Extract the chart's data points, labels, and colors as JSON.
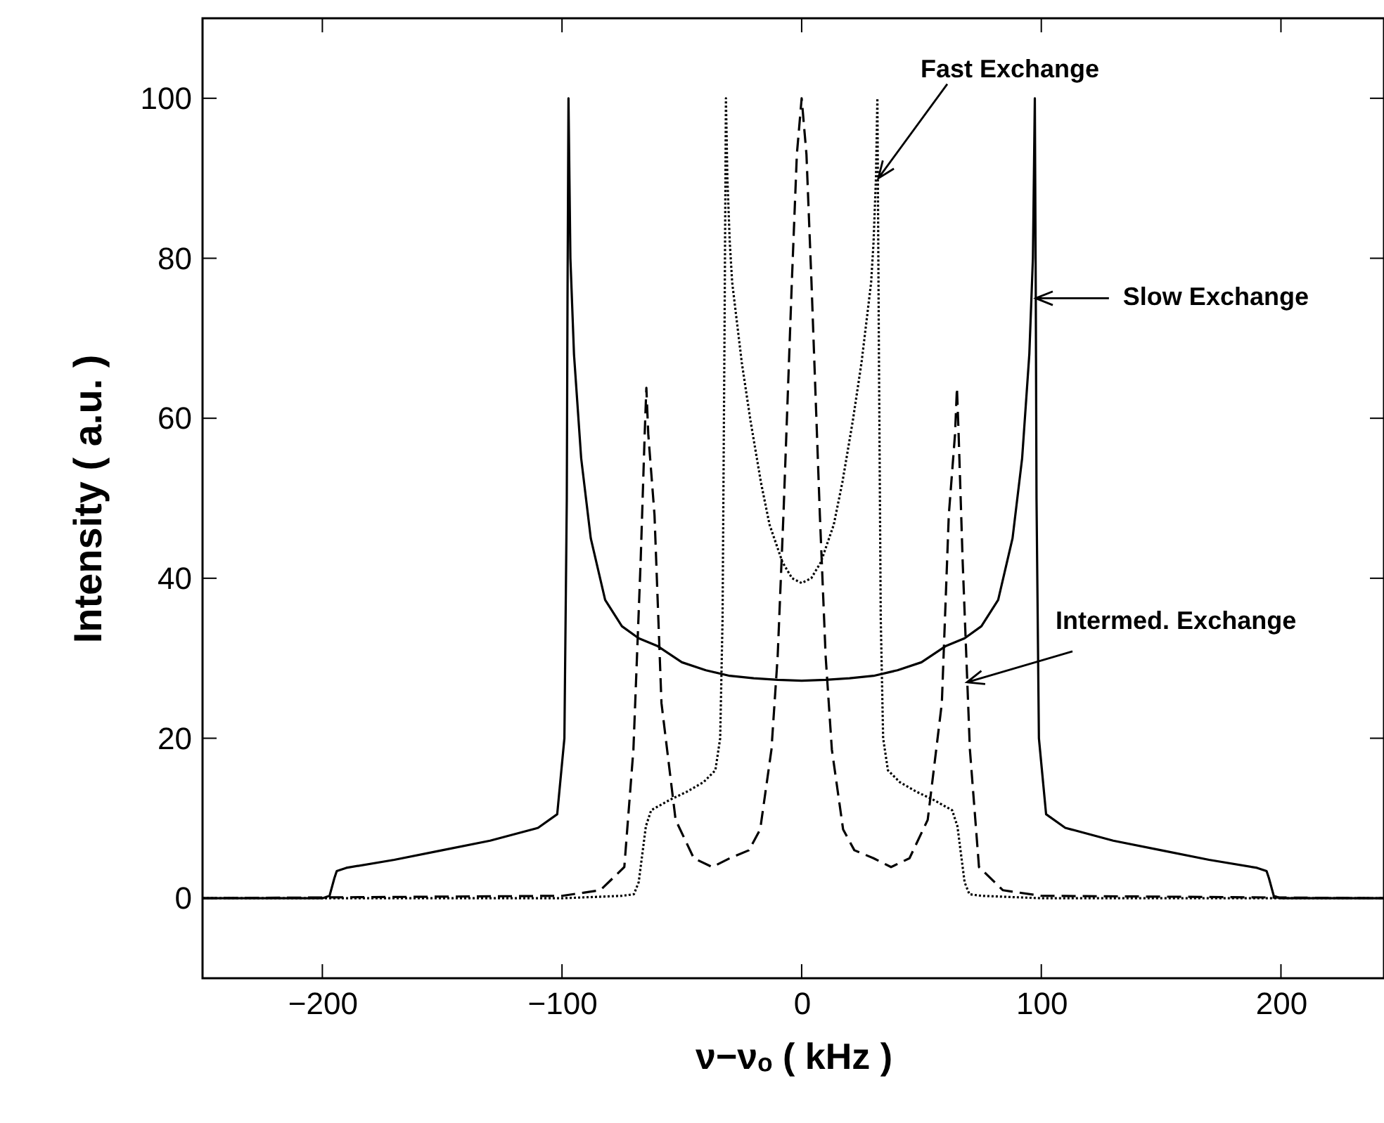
{
  "chart_data": {
    "type": "line",
    "xlabel": "ν−νₒ ( kHz )",
    "ylabel": "Intensity ( a.u. )",
    "xlim": [
      -250,
      243
    ],
    "ylim": [
      -10,
      110
    ],
    "xticks": [
      -200,
      -100,
      0,
      100,
      200
    ],
    "yticks": [
      0,
      20,
      40,
      60,
      80,
      100
    ],
    "grid": false,
    "series": [
      {
        "color": "#000000",
        "line_style": "solid",
        "x": [
          -250,
          -200,
          -197,
          -195,
          -194,
          -190,
          -170,
          -150,
          -130,
          -110,
          -102,
          -99,
          -98,
          -97.7,
          -97.3,
          -96.5,
          -95,
          -92,
          -88,
          -82,
          -75,
          -68,
          -60,
          -50,
          -40,
          -30,
          -20,
          -10,
          0,
          10,
          20,
          30,
          40,
          50,
          60,
          68,
          75,
          82,
          88,
          92,
          95,
          96.5,
          97.3,
          97.7,
          98,
          99,
          102,
          110,
          130,
          150,
          170,
          190,
          194,
          195,
          197,
          200,
          243
        ],
        "values": [
          0,
          0,
          0.3,
          2.5,
          3.4,
          3.8,
          4.8,
          6,
          7.2,
          8.8,
          10.5,
          20,
          50,
          75,
          100,
          80,
          68,
          55,
          45,
          37.3,
          34,
          32.5,
          31.5,
          29.5,
          28.5,
          27.8,
          27.5,
          27.3,
          27.2,
          27.3,
          27.5,
          27.8,
          28.5,
          29.5,
          31.5,
          32.5,
          34,
          37.3,
          45,
          55,
          68,
          80,
          100,
          75,
          50,
          20,
          10.5,
          8.8,
          7.2,
          6,
          4.8,
          3.8,
          3.4,
          2.5,
          0.3,
          0,
          0
        ]
      },
      {
        "color": "#000000",
        "line_style": "dotted",
        "x": [
          -250,
          -100,
          -75,
          -70,
          -68,
          -65,
          -62.8,
          -55,
          -48,
          -41,
          -36,
          -34,
          -33,
          -32.2,
          -31.6,
          -31,
          -30,
          -29,
          -25,
          -21.3,
          -17,
          -13.4,
          -8,
          -4,
          0,
          4,
          8,
          13.4,
          17,
          21.3,
          25,
          29,
          30,
          31,
          31.6,
          32.2,
          33,
          34,
          36,
          41,
          48,
          55,
          62.8,
          65,
          68,
          70,
          75,
          100,
          243
        ],
        "values": [
          0,
          0,
          0.3,
          0.5,
          2,
          9,
          11,
          12.3,
          13.3,
          14.5,
          16,
          20,
          35,
          70,
          100,
          90,
          82,
          77,
          67,
          59.6,
          52,
          46.7,
          42,
          40,
          39.4,
          40,
          42,
          46.7,
          52,
          59.6,
          67,
          77,
          82,
          90,
          100,
          70,
          35,
          20,
          16,
          14.5,
          13.3,
          12.3,
          11,
          9,
          2,
          0.5,
          0.3,
          0,
          0
        ]
      },
      {
        "color": "#000000",
        "line_style": "dashed",
        "x": [
          -250,
          -100,
          -84,
          -74,
          -70.2,
          -67.2,
          -65.5,
          -64.8,
          -64,
          -61.4,
          -58.5,
          -52.6,
          -45,
          -37.3,
          -30,
          -22,
          -17.3,
          -12.6,
          -10,
          -7.6,
          -4.1,
          -2,
          0,
          2,
          4.1,
          7.6,
          10,
          12.6,
          17.3,
          22,
          30,
          37.3,
          45,
          52.6,
          58.5,
          61.4,
          64,
          64.8,
          65.5,
          67.2,
          70.2,
          74,
          84,
          100,
          243
        ],
        "values": [
          0,
          0.3,
          1,
          3.9,
          18.6,
          42,
          58,
          63.8,
          58,
          47.9,
          24.4,
          9.8,
          5,
          3.9,
          5,
          6,
          8.6,
          18.6,
          30.3,
          47.9,
          77,
          93,
          100,
          93,
          77,
          47.9,
          30.3,
          18.6,
          8.6,
          6,
          5,
          3.9,
          5,
          9.8,
          24.4,
          47.9,
          58,
          63.8,
          58,
          42,
          18.6,
          3.9,
          1,
          0.3,
          0
        ]
      }
    ],
    "annotations": [
      {
        "text": "Fast Exchange",
        "x": 32,
        "y": 90
      },
      {
        "text": "Slow Exchange",
        "x": 97.7,
        "y": 75
      },
      {
        "text": "Intermed. Exchange",
        "x": 69,
        "y": 27
      }
    ]
  }
}
